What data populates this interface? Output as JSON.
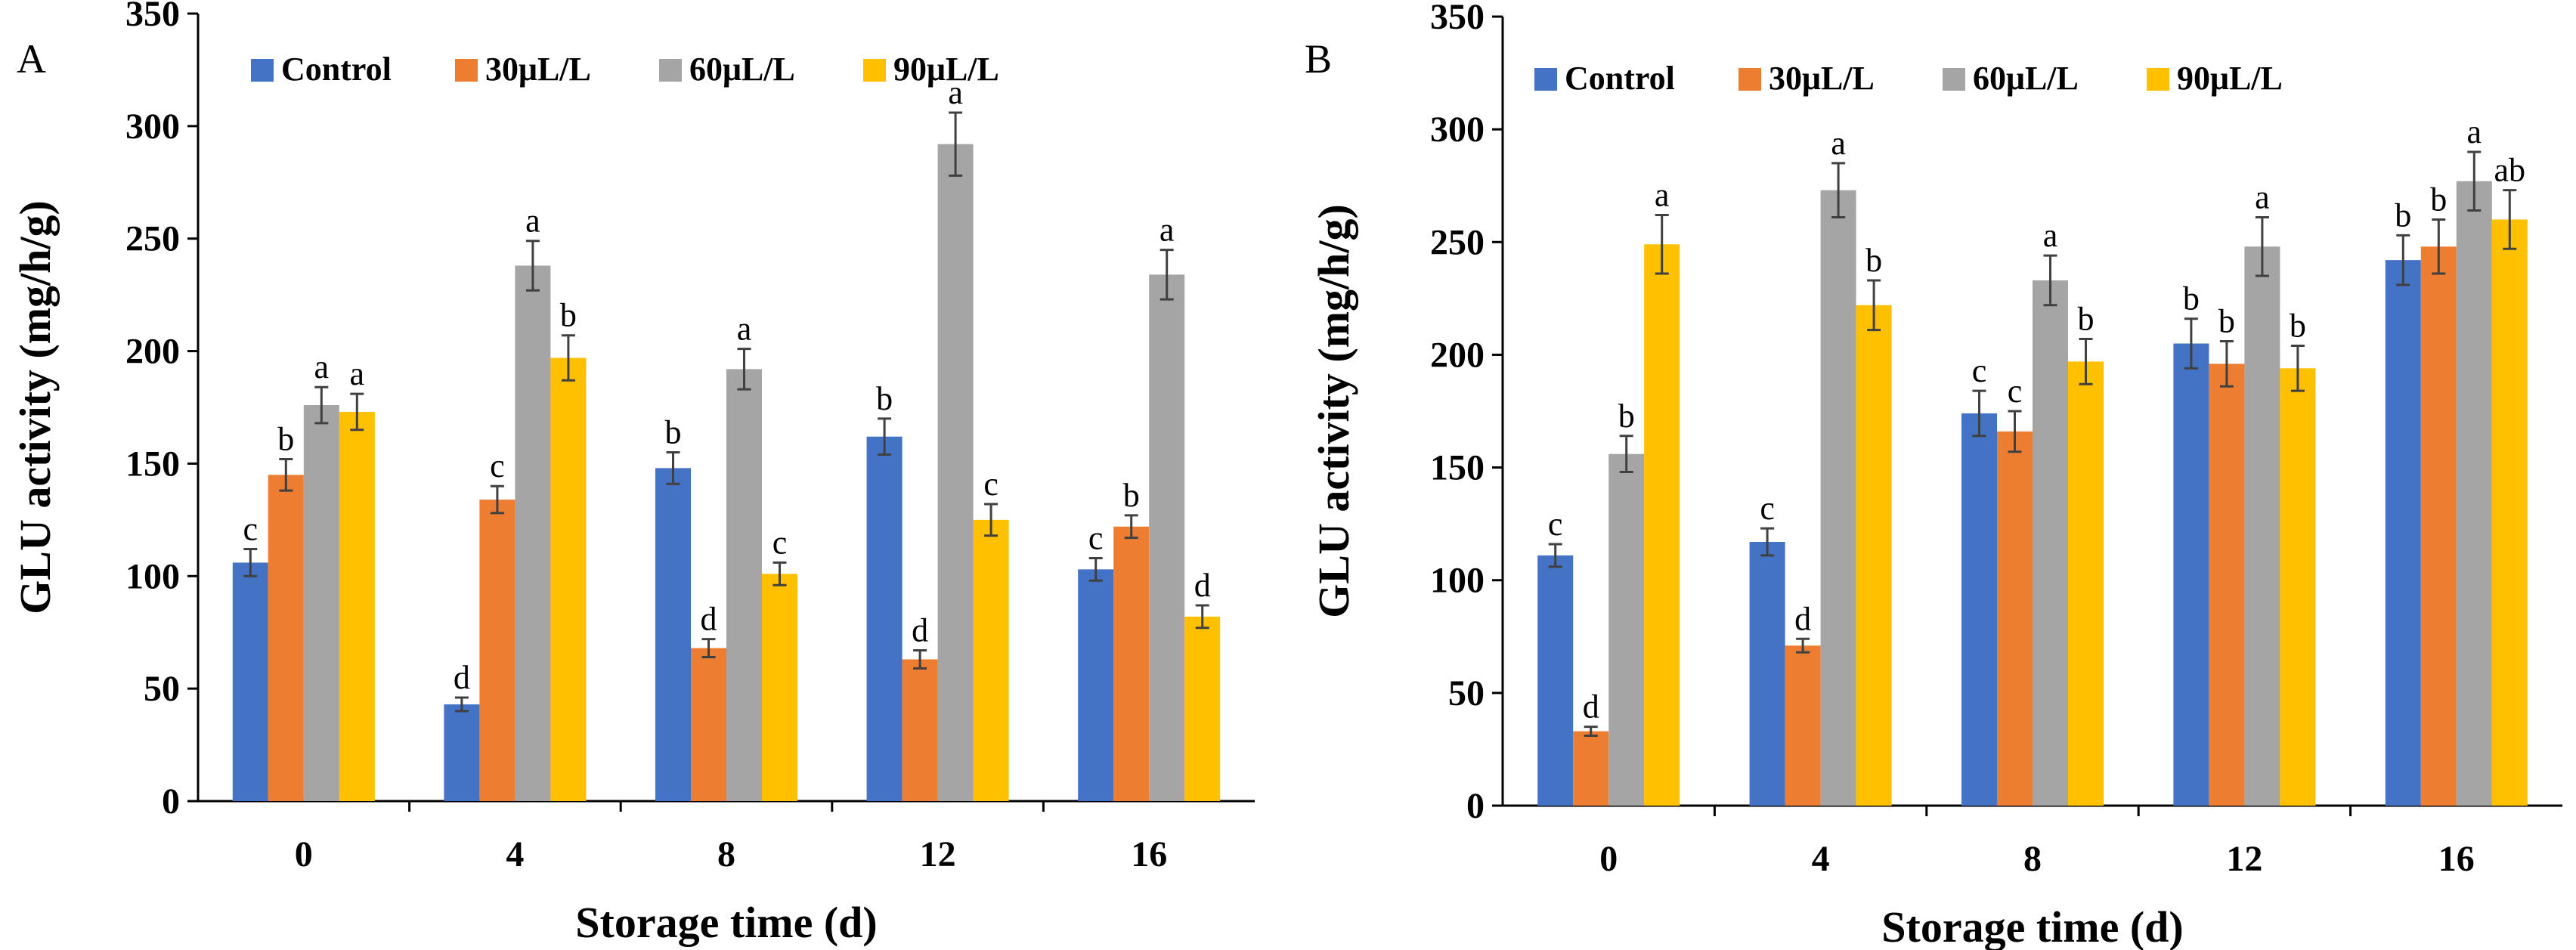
{
  "colors": {
    "Control": "#4472C4",
    "30μL/L": "#ED7D31",
    "60μL/L": "#A5A5A5",
    "90μL/L": "#FFC000",
    "axis": "#000000",
    "error_bar": "#404040"
  },
  "chart_data": [
    {
      "type": "bar",
      "panel_label": "A",
      "categories": [
        "0",
        "4",
        "8",
        "12",
        "16"
      ],
      "xlabel": "Storage time (d)",
      "ylabel": "GLU activity (mg/h/g)",
      "ylim": [
        0,
        350
      ],
      "yticks": [
        "0",
        "50",
        "100",
        "150",
        "200",
        "250",
        "300",
        "350"
      ],
      "legend_position": "top",
      "series": [
        {
          "name": "Control",
          "values": [
            106,
            43,
            148,
            162,
            103
          ],
          "errors": [
            6,
            3,
            7,
            8,
            5
          ],
          "letters": [
            "c",
            "d",
            "b",
            "b",
            "c"
          ]
        },
        {
          "name": "30μL/L",
          "values": [
            145,
            134,
            68,
            63,
            122
          ],
          "errors": [
            7,
            6,
            4,
            4,
            5
          ],
          "letters": [
            "b",
            "c",
            "d",
            "d",
            "b"
          ]
        },
        {
          "name": "60μL/L",
          "values": [
            176,
            238,
            192,
            292,
            234
          ],
          "errors": [
            8,
            11,
            9,
            14,
            11
          ],
          "letters": [
            "a",
            "a",
            "a",
            "a",
            "a"
          ]
        },
        {
          "name": "90μL/L",
          "values": [
            173,
            197,
            101,
            125,
            82
          ],
          "errors": [
            8,
            10,
            5,
            7,
            5
          ],
          "letters": [
            "a",
            "b",
            "c",
            "c",
            "d"
          ]
        }
      ]
    },
    {
      "type": "bar",
      "panel_label": "B",
      "categories": [
        "0",
        "4",
        "8",
        "12",
        "16"
      ],
      "xlabel": "Storage time (d)",
      "ylabel": "GLU activity (mg/h/g)",
      "ylim": [
        0,
        350
      ],
      "yticks": [
        "0",
        "50",
        "100",
        "150",
        "200",
        "250",
        "300",
        "350"
      ],
      "legend_position": "top",
      "series": [
        {
          "name": "Control",
          "values": [
            111,
            117,
            174,
            205,
            242
          ],
          "errors": [
            5,
            6,
            10,
            11,
            11
          ],
          "letters": [
            "c",
            "c",
            "c",
            "b",
            "b"
          ]
        },
        {
          "name": "30μL/L",
          "values": [
            33,
            71,
            166,
            196,
            248
          ],
          "errors": [
            2,
            3,
            9,
            10,
            12
          ],
          "letters": [
            "d",
            "d",
            "c",
            "b",
            "b"
          ]
        },
        {
          "name": "60μL/L",
          "values": [
            156,
            273,
            233,
            248,
            277
          ],
          "errors": [
            8,
            12,
            11,
            13,
            13
          ],
          "letters": [
            "b",
            "a",
            "a",
            "a",
            "a"
          ]
        },
        {
          "name": "90μL/L",
          "values": [
            249,
            222,
            197,
            194,
            260
          ],
          "errors": [
            13,
            11,
            10,
            10,
            13
          ],
          "letters": [
            "a",
            "b",
            "b",
            "b",
            "ab"
          ]
        }
      ]
    }
  ]
}
